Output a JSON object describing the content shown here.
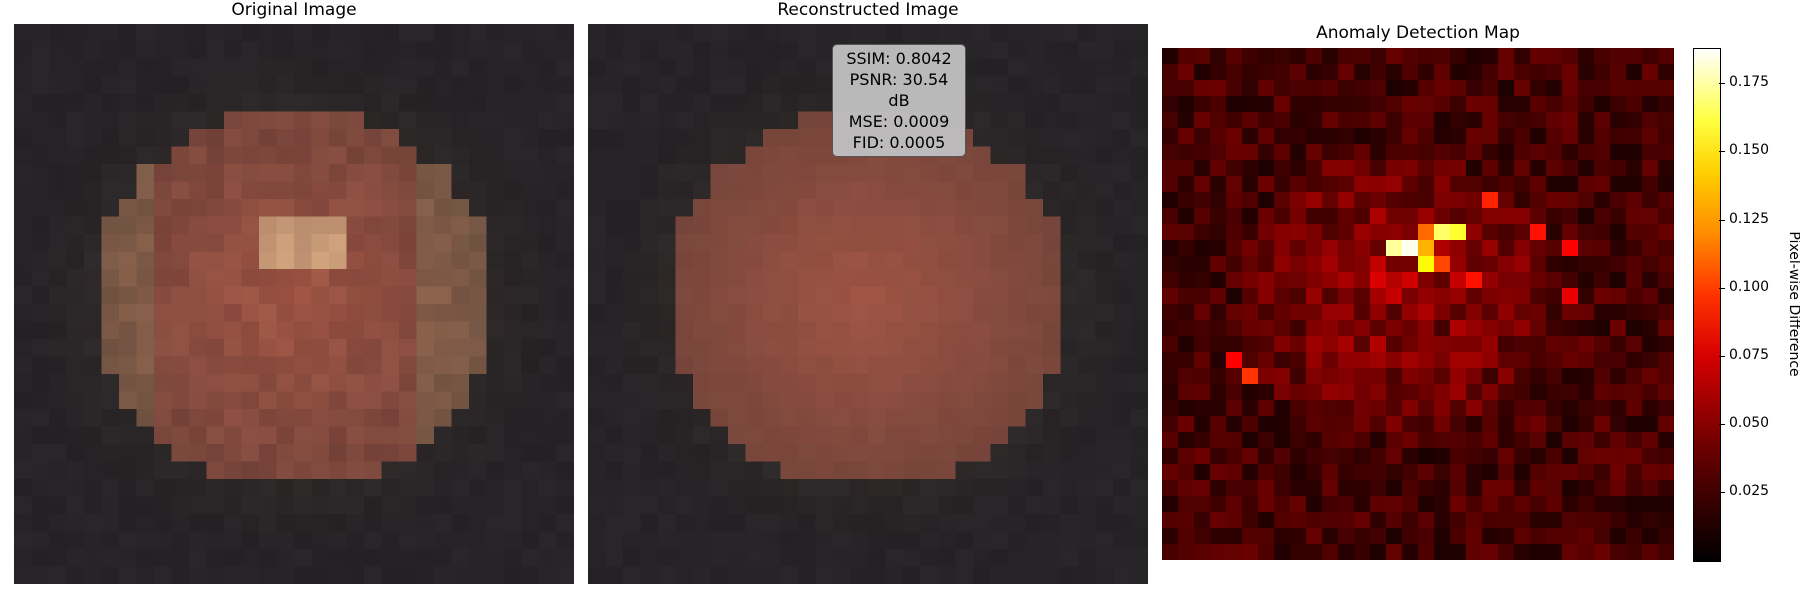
{
  "panels": {
    "original": {
      "title": "Original Image"
    },
    "reconstructed": {
      "title": "Reconstructed Image"
    },
    "anomaly": {
      "title": "Anomaly Detection Map"
    }
  },
  "metrics": {
    "ssim": "SSIM: 0.8042",
    "psnr": "PSNR: 30.54 dB",
    "mse": "MSE: 0.0009",
    "fid": "FID: 0.0005"
  },
  "colors": {
    "background": "#2a282a",
    "lesion": "#9c5a4a",
    "colormap": "hot"
  },
  "chart_data": {
    "type": "heatmap",
    "title": "Anomaly Detection Map",
    "grid_size": [
      32,
      32
    ],
    "colorbar": {
      "label": "Pixel-wise Difference",
      "ticks": [
        0.025,
        0.05,
        0.075,
        0.1,
        0.125,
        0.15,
        0.175
      ],
      "tick_labels": [
        "0.025",
        "0.050",
        "0.075",
        "0.100",
        "0.125",
        "0.150",
        "0.175"
      ],
      "range": [
        0.0,
        0.188
      ]
    },
    "hotspots": [
      {
        "row": 12,
        "col": 15,
        "value": 0.185
      },
      {
        "row": 12,
        "col": 14,
        "value": 0.17
      },
      {
        "row": 11,
        "col": 17,
        "value": 0.16
      },
      {
        "row": 11,
        "col": 18,
        "value": 0.15
      },
      {
        "row": 13,
        "col": 16,
        "value": 0.14
      },
      {
        "row": 12,
        "col": 16,
        "value": 0.12
      },
      {
        "row": 11,
        "col": 16,
        "value": 0.1
      },
      {
        "row": 13,
        "col": 17,
        "value": 0.09
      },
      {
        "row": 14,
        "col": 19,
        "value": 0.075
      },
      {
        "row": 9,
        "col": 20,
        "value": 0.08
      },
      {
        "row": 20,
        "col": 5,
        "value": 0.085
      },
      {
        "row": 19,
        "col": 4,
        "value": 0.07
      },
      {
        "row": 11,
        "col": 23,
        "value": 0.075
      },
      {
        "row": 12,
        "col": 25,
        "value": 0.07
      },
      {
        "row": 15,
        "col": 25,
        "value": 0.065
      }
    ]
  }
}
